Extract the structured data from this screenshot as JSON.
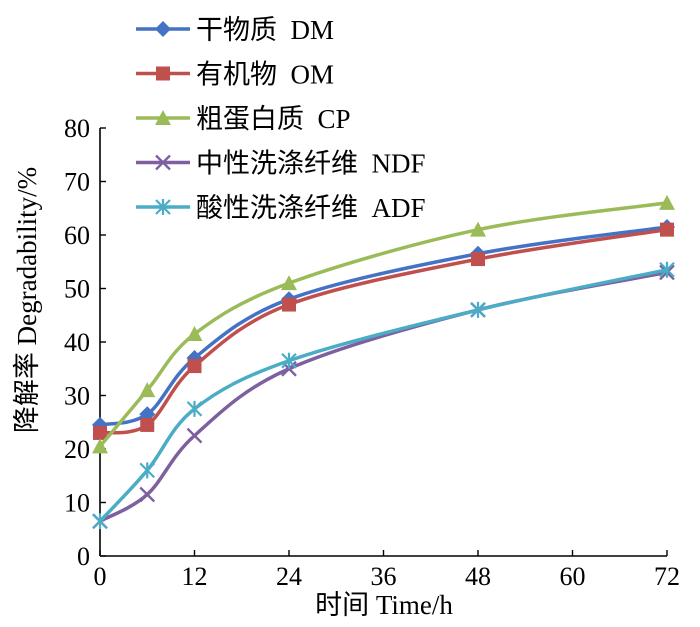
{
  "chart_data": {
    "type": "line",
    "xlabel": "时间 Time/h",
    "ylabel": "降解率 Degradability/%",
    "xlim": [
      0,
      72
    ],
    "ylim": [
      0,
      80
    ],
    "xticks": [
      "0",
      "12",
      "24",
      "36",
      "48",
      "60",
      "72"
    ],
    "yticks": [
      "0",
      "10",
      "20",
      "30",
      "40",
      "50",
      "60",
      "70",
      "80"
    ],
    "grid": false,
    "legend_position": "top-left",
    "x": [
      0,
      6,
      12,
      24,
      48,
      72
    ],
    "series": [
      {
        "name": "干物质  DM",
        "marker": "diamond",
        "color": "#4472c4",
        "values": [
          24.5,
          26.5,
          37,
          48,
          56.5,
          61.5
        ]
      },
      {
        "name": "有机物  OM",
        "marker": "square",
        "color": "#c0504d",
        "values": [
          23,
          24.5,
          35.5,
          47,
          55.5,
          61
        ]
      },
      {
        "name": "粗蛋白质  CP",
        "marker": "triangle",
        "color": "#9bbb59",
        "values": [
          20.5,
          31,
          41.5,
          51,
          61,
          66
        ]
      },
      {
        "name": "中性洗涤纤维  NDF",
        "marker": "x",
        "color": "#7e5fa0",
        "values": [
          6.5,
          11.5,
          22.5,
          35,
          46,
          53
        ]
      },
      {
        "name": "酸性洗涤纤维  ADF",
        "marker": "asterisk",
        "color": "#4bacc6",
        "values": [
          6.5,
          16,
          27.5,
          36.5,
          46,
          53.5
        ]
      }
    ]
  }
}
